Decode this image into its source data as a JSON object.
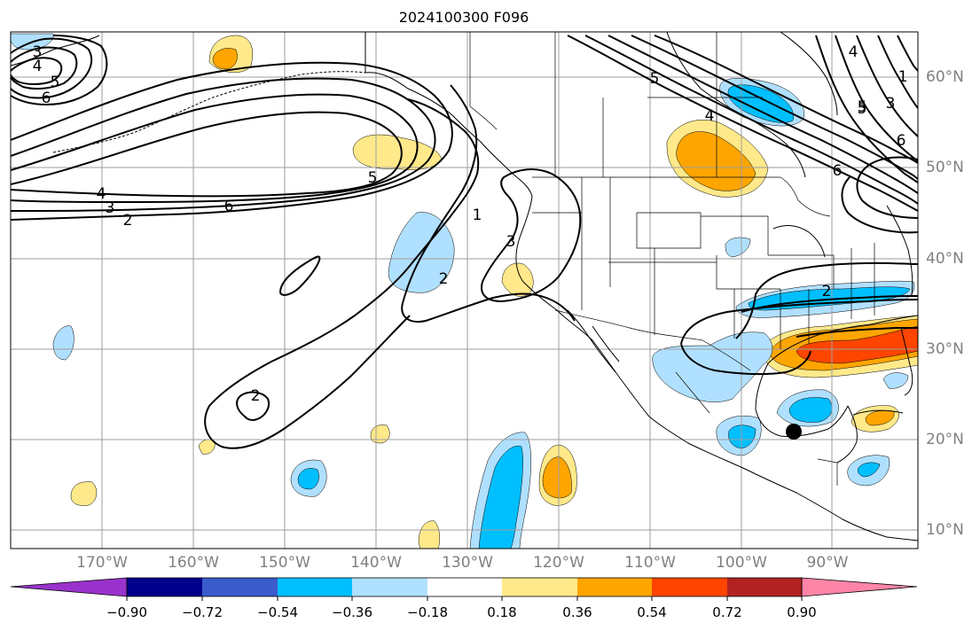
{
  "title": "2024100300 F096",
  "colors": {
    "neg_090": "#9932cc",
    "neg_072": "#00008b",
    "neg_054": "#3a5ccc",
    "neg_036": "#00bfff",
    "neg_018": "#b0e0ff",
    "neutral": "#ffffff",
    "pos_018": "#ffe98a",
    "pos_036": "#ffa500",
    "pos_054": "#ff4500",
    "pos_072": "#b22222",
    "pos_090": "#ff85a8",
    "contour": "#000000",
    "grid": "#9e9e9e",
    "marker": "#000000"
  },
  "longitude_labels": [
    "170°W",
    "160°W",
    "150°W",
    "140°W",
    "130°W",
    "120°W",
    "110°W",
    "100°W",
    "90°W"
  ],
  "latitude_labels": [
    "60°N",
    "50°N",
    "40°N",
    "30°N",
    "20°N",
    "10°N"
  ],
  "colorbar": {
    "tick_labels": [
      "−0.90",
      "−0.72",
      "−0.54",
      "−0.36",
      "−0.18",
      "0.18",
      "0.36",
      "0.54",
      "0.72",
      "0.90"
    ],
    "bins": [
      "neg_072",
      "neg_054",
      "neg_036",
      "neg_018",
      "neutral",
      "pos_018",
      "pos_036",
      "pos_054",
      "pos_072"
    ]
  },
  "contour_labels": [
    {
      "text": "6"
    },
    {
      "text": "5"
    },
    {
      "text": "4"
    },
    {
      "text": "3"
    },
    {
      "text": "6"
    },
    {
      "text": "4"
    },
    {
      "text": "3"
    },
    {
      "text": "2"
    },
    {
      "text": "5"
    },
    {
      "text": "1"
    },
    {
      "text": "3"
    },
    {
      "text": "2"
    },
    {
      "text": "2"
    },
    {
      "text": "5"
    },
    {
      "text": "4"
    },
    {
      "text": "5"
    },
    {
      "text": "6"
    },
    {
      "text": "2"
    },
    {
      "text": "4"
    },
    {
      "text": "5"
    },
    {
      "text": "6"
    },
    {
      "text": "1"
    },
    {
      "text": "3"
    }
  ]
}
